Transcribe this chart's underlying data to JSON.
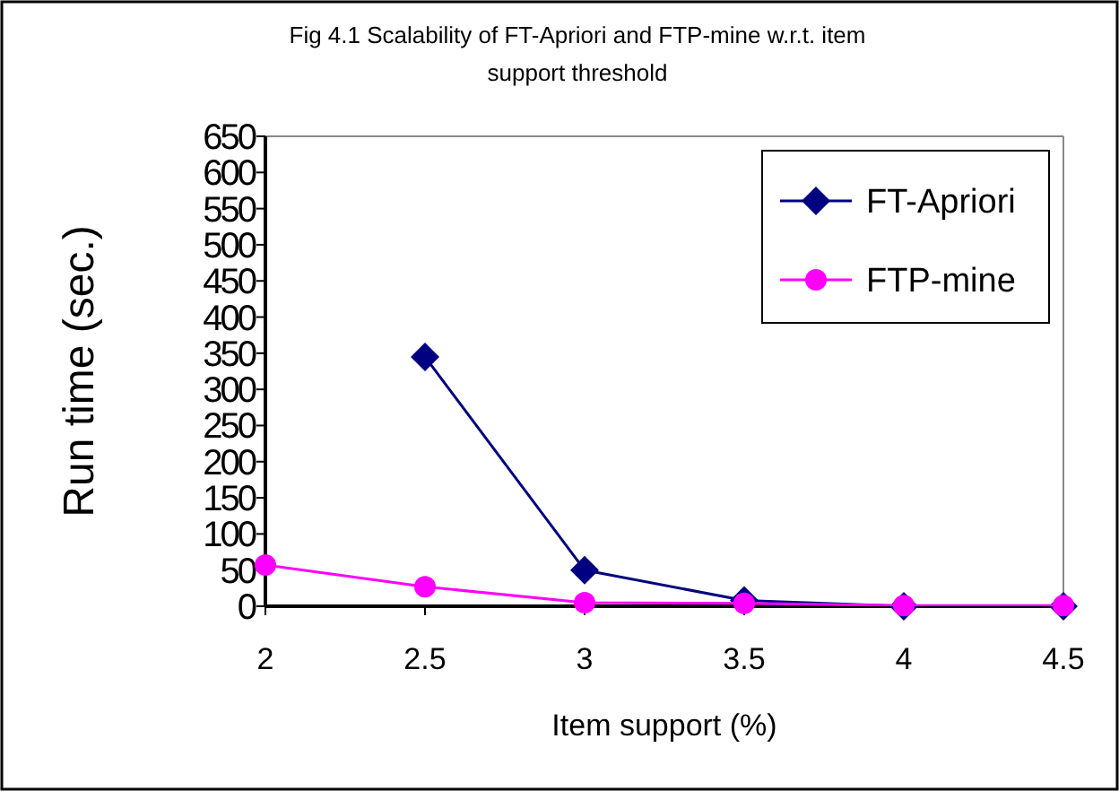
{
  "chart_data": {
    "type": "line",
    "title": "Fig 4.1 Scalability of FT-Apriori and FTP-mine w.r.t. item support threshold",
    "xlabel": "Item support (%)",
    "ylabel": "Run time (sec.)",
    "x": [
      2,
      2.5,
      3,
      3.5,
      4,
      4.5
    ],
    "xlim": [
      2,
      4.5
    ],
    "xticks": [
      2,
      2.5,
      3,
      3.5,
      4,
      4.5
    ],
    "ylim": [
      0,
      650
    ],
    "yticks": [
      0,
      50,
      100,
      150,
      200,
      250,
      300,
      350,
      400,
      450,
      500,
      550,
      600,
      650
    ],
    "legend": "top right",
    "grid": false,
    "series": [
      {
        "name": "FT-Apriori",
        "color": "#000080",
        "marker": "diamond",
        "values": [
          null,
          345,
          50,
          8,
          0,
          0
        ]
      },
      {
        "name": "FTP-mine",
        "color": "#ff00ff",
        "marker": "circle",
        "values": [
          57,
          27,
          5,
          4,
          1,
          1
        ]
      }
    ]
  }
}
